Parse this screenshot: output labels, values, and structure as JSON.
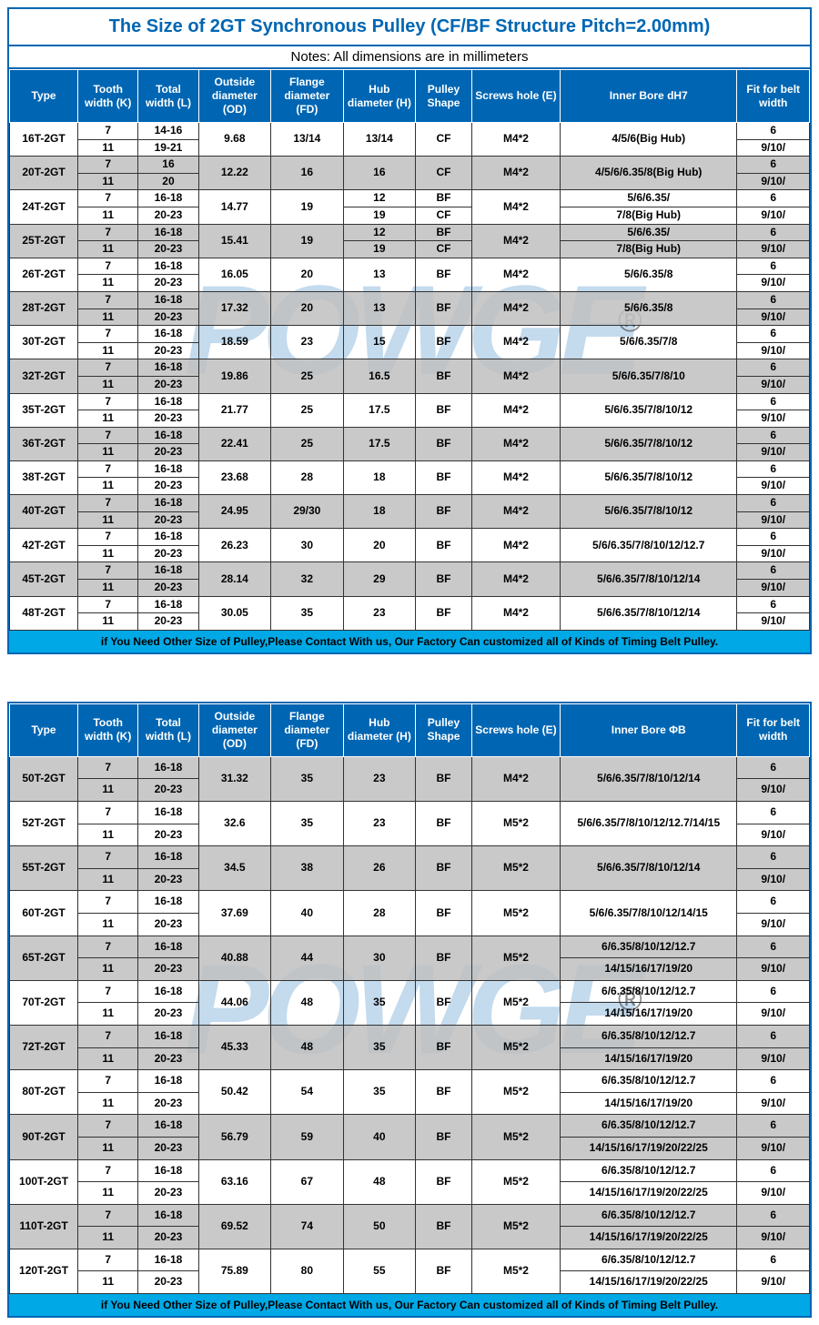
{
  "title": "The Size of 2GT Synchronous Pulley (CF/BF Structure Pitch=2.00mm)",
  "notes": "Notes: All dimensions are in millimeters",
  "footer": "if You Need Other Size of Pulley,Please Contact With us, Our Factory Can customized all of Kinds of Timing Belt Pulley.",
  "watermark": "POWGE",
  "colors": {
    "header_bg": "#0066b3",
    "header_text": "#ffffff",
    "footer_bg": "#00a8e6",
    "grey_row": "#bfbfbf",
    "border": "#333333",
    "title_color": "#0066b3"
  },
  "headers": {
    "type": "Type",
    "tooth": "Tooth width (K)",
    "total": "Total width (L)",
    "od": "Outside diameter (OD)",
    "fd": "Flange diameter (FD)",
    "hub": "Hub diameter (H)",
    "shape": "Pulley Shape",
    "screw": "Screws hole (E)",
    "bore1": "Inner Bore dH7",
    "bore2": "Inner Bore ΦB",
    "fit": "Fit for belt width"
  },
  "table1": [
    {
      "gs": "w",
      "type": "16T-2GT",
      "tooth": [
        "7",
        "11"
      ],
      "total": [
        "14-16",
        "19-21"
      ],
      "od": "9.68",
      "fd": "13/14",
      "hub": [
        "13/14"
      ],
      "shape": [
        "CF"
      ],
      "screw": "M4*2",
      "bore": [
        "4/5/6(Big Hub)"
      ],
      "fit": [
        "6",
        "9/10/"
      ]
    },
    {
      "gs": "g",
      "type": "20T-2GT",
      "tooth": [
        "7",
        "11"
      ],
      "total": [
        "16",
        "20"
      ],
      "od": "12.22",
      "fd": "16",
      "hub": [
        "16"
      ],
      "shape": [
        "CF"
      ],
      "screw": "M4*2",
      "bore": [
        "4/5/6/6.35/8(Big Hub)"
      ],
      "fit": [
        "6",
        "9/10/"
      ]
    },
    {
      "gs": "w",
      "type": "24T-2GT",
      "tooth": [
        "7",
        "11"
      ],
      "total": [
        "16-18",
        "20-23"
      ],
      "od": "14.77",
      "fd": "19",
      "hub": [
        "12",
        "19"
      ],
      "shape": [
        "BF",
        "CF"
      ],
      "screw": "M4*2",
      "bore": [
        "5/6/6.35/",
        "7/8(Big Hub)"
      ],
      "fit": [
        "6",
        "9/10/"
      ]
    },
    {
      "gs": "g",
      "type": "25T-2GT",
      "tooth": [
        "7",
        "11"
      ],
      "total": [
        "16-18",
        "20-23"
      ],
      "od": "15.41",
      "fd": "19",
      "hub": [
        "12",
        "19"
      ],
      "shape": [
        "BF",
        "CF"
      ],
      "screw": "M4*2",
      "bore": [
        "5/6/6.35/",
        "7/8(Big Hub)"
      ],
      "fit": [
        "6",
        "9/10/"
      ]
    },
    {
      "gs": "w",
      "type": "26T-2GT",
      "tooth": [
        "7",
        "11"
      ],
      "total": [
        "16-18",
        "20-23"
      ],
      "od": "16.05",
      "fd": "20",
      "hub": [
        "13"
      ],
      "shape": [
        "BF"
      ],
      "screw": "M4*2",
      "bore": [
        "5/6/6.35/8"
      ],
      "fit": [
        "6",
        "9/10/"
      ]
    },
    {
      "gs": "g",
      "type": "28T-2GT",
      "tooth": [
        "7",
        "11"
      ],
      "total": [
        "16-18",
        "20-23"
      ],
      "od": "17.32",
      "fd": "20",
      "hub": [
        "13"
      ],
      "shape": [
        "BF"
      ],
      "screw": "M4*2",
      "bore": [
        "5/6/6.35/8"
      ],
      "fit": [
        "6",
        "9/10/"
      ]
    },
    {
      "gs": "w",
      "type": "30T-2GT",
      "tooth": [
        "7",
        "11"
      ],
      "total": [
        "16-18",
        "20-23"
      ],
      "od": "18.59",
      "fd": "23",
      "hub": [
        "15"
      ],
      "shape": [
        "BF"
      ],
      "screw": "M4*2",
      "bore": [
        "5/6/6.35/7/8"
      ],
      "fit": [
        "6",
        "9/10/"
      ]
    },
    {
      "gs": "g",
      "type": "32T-2GT",
      "tooth": [
        "7",
        "11"
      ],
      "total": [
        "16-18",
        "20-23"
      ],
      "od": "19.86",
      "fd": "25",
      "hub": [
        "16.5"
      ],
      "shape": [
        "BF"
      ],
      "screw": "M4*2",
      "bore": [
        "5/6/6.35/7/8/10"
      ],
      "fit": [
        "6",
        "9/10/"
      ]
    },
    {
      "gs": "w",
      "type": "35T-2GT",
      "tooth": [
        "7",
        "11"
      ],
      "total": [
        "16-18",
        "20-23"
      ],
      "od": "21.77",
      "fd": "25",
      "hub": [
        "17.5"
      ],
      "shape": [
        "BF"
      ],
      "screw": "M4*2",
      "bore": [
        "5/6/6.35/7/8/10/12"
      ],
      "fit": [
        "6",
        "9/10/"
      ]
    },
    {
      "gs": "g",
      "type": "36T-2GT",
      "tooth": [
        "7",
        "11"
      ],
      "total": [
        "16-18",
        "20-23"
      ],
      "od": "22.41",
      "fd": "25",
      "hub": [
        "17.5"
      ],
      "shape": [
        "BF"
      ],
      "screw": "M4*2",
      "bore": [
        "5/6/6.35/7/8/10/12"
      ],
      "fit": [
        "6",
        "9/10/"
      ]
    },
    {
      "gs": "w",
      "type": "38T-2GT",
      "tooth": [
        "7",
        "11"
      ],
      "total": [
        "16-18",
        "20-23"
      ],
      "od": "23.68",
      "fd": "28",
      "hub": [
        "18"
      ],
      "shape": [
        "BF"
      ],
      "screw": "M4*2",
      "bore": [
        "5/6/6.35/7/8/10/12"
      ],
      "fit": [
        "6",
        "9/10/"
      ]
    },
    {
      "gs": "g",
      "type": "40T-2GT",
      "tooth": [
        "7",
        "11"
      ],
      "total": [
        "16-18",
        "20-23"
      ],
      "od": "24.95",
      "fd": "29/30",
      "hub": [
        "18"
      ],
      "shape": [
        "BF"
      ],
      "screw": "M4*2",
      "bore": [
        "5/6/6.35/7/8/10/12"
      ],
      "fit": [
        "6",
        "9/10/"
      ]
    },
    {
      "gs": "w",
      "type": "42T-2GT",
      "tooth": [
        "7",
        "11"
      ],
      "total": [
        "16-18",
        "20-23"
      ],
      "od": "26.23",
      "fd": "30",
      "hub": [
        "20"
      ],
      "shape": [
        "BF"
      ],
      "screw": "M4*2",
      "bore": [
        "5/6/6.35/7/8/10/12/12.7"
      ],
      "fit": [
        "6",
        "9/10/"
      ]
    },
    {
      "gs": "g",
      "type": "45T-2GT",
      "tooth": [
        "7",
        "11"
      ],
      "total": [
        "16-18",
        "20-23"
      ],
      "od": "28.14",
      "fd": "32",
      "hub": [
        "29"
      ],
      "shape": [
        "BF"
      ],
      "screw": "M4*2",
      "bore": [
        "5/6/6.35/7/8/10/12/14"
      ],
      "fit": [
        "6",
        "9/10/"
      ]
    },
    {
      "gs": "w",
      "type": "48T-2GT",
      "tooth": [
        "7",
        "11"
      ],
      "total": [
        "16-18",
        "20-23"
      ],
      "od": "30.05",
      "fd": "35",
      "hub": [
        "23"
      ],
      "shape": [
        "BF"
      ],
      "screw": "M4*2",
      "bore": [
        "5/6/6.35/7/8/10/12/14"
      ],
      "fit": [
        "6",
        "9/10/"
      ]
    }
  ],
  "table2": [
    {
      "gs": "g",
      "type": "50T-2GT",
      "tooth": [
        "7",
        "11"
      ],
      "total": [
        "16-18",
        "20-23"
      ],
      "od": "31.32",
      "fd": "35",
      "hub": [
        "23"
      ],
      "shape": [
        "BF"
      ],
      "screw": "M4*2",
      "bore": [
        "5/6/6.35/7/8/10/12/14"
      ],
      "fit": [
        "6",
        "9/10/"
      ]
    },
    {
      "gs": "w",
      "type": "52T-2GT",
      "tooth": [
        "7",
        "11"
      ],
      "total": [
        "16-18",
        "20-23"
      ],
      "od": "32.6",
      "fd": "35",
      "hub": [
        "23"
      ],
      "shape": [
        "BF"
      ],
      "screw": "M5*2",
      "bore": [
        "5/6/6.35/7/8/10/12/12.7/14/15"
      ],
      "fit": [
        "6",
        "9/10/"
      ]
    },
    {
      "gs": "g",
      "type": "55T-2GT",
      "tooth": [
        "7",
        "11"
      ],
      "total": [
        "16-18",
        "20-23"
      ],
      "od": "34.5",
      "fd": "38",
      "hub": [
        "26"
      ],
      "shape": [
        "BF"
      ],
      "screw": "M5*2",
      "bore": [
        "5/6/6.35/7/8/10/12/14"
      ],
      "fit": [
        "6",
        "9/10/"
      ]
    },
    {
      "gs": "w",
      "type": "60T-2GT",
      "tooth": [
        "7",
        "11"
      ],
      "total": [
        "16-18",
        "20-23"
      ],
      "od": "37.69",
      "fd": "40",
      "hub": [
        "28"
      ],
      "shape": [
        "BF"
      ],
      "screw": "M5*2",
      "bore": [
        "5/6/6.35/7/8/10/12/14/15"
      ],
      "fit": [
        "6",
        "9/10/"
      ]
    },
    {
      "gs": "g",
      "type": "65T-2GT",
      "tooth": [
        "7",
        "11"
      ],
      "total": [
        "16-18",
        "20-23"
      ],
      "od": "40.88",
      "fd": "44",
      "hub": [
        "30"
      ],
      "shape": [
        "BF"
      ],
      "screw": "M5*2",
      "bore": [
        "6/6.35/8/10/12/12.7",
        "14/15/16/17/19/20"
      ],
      "fit": [
        "6",
        "9/10/"
      ]
    },
    {
      "gs": "w",
      "type": "70T-2GT",
      "tooth": [
        "7",
        "11"
      ],
      "total": [
        "16-18",
        "20-23"
      ],
      "od": "44.06",
      "fd": "48",
      "hub": [
        "35"
      ],
      "shape": [
        "BF"
      ],
      "screw": "M5*2",
      "bore": [
        "6/6.35/8/10/12/12.7",
        "14/15/16/17/19/20"
      ],
      "fit": [
        "6",
        "9/10/"
      ]
    },
    {
      "gs": "g",
      "type": "72T-2GT",
      "tooth": [
        "7",
        "11"
      ],
      "total": [
        "16-18",
        "20-23"
      ],
      "od": "45.33",
      "fd": "48",
      "hub": [
        "35"
      ],
      "shape": [
        "BF"
      ],
      "screw": "M5*2",
      "bore": [
        "6/6.35/8/10/12/12.7",
        "14/15/16/17/19/20"
      ],
      "fit": [
        "6",
        "9/10/"
      ]
    },
    {
      "gs": "w",
      "type": "80T-2GT",
      "tooth": [
        "7",
        "11"
      ],
      "total": [
        "16-18",
        "20-23"
      ],
      "od": "50.42",
      "fd": "54",
      "hub": [
        "35"
      ],
      "shape": [
        "BF"
      ],
      "screw": "M5*2",
      "bore": [
        "6/6.35/8/10/12/12.7",
        "14/15/16/17/19/20"
      ],
      "fit": [
        "6",
        "9/10/"
      ]
    },
    {
      "gs": "g",
      "type": "90T-2GT",
      "tooth": [
        "7",
        "11"
      ],
      "total": [
        "16-18",
        "20-23"
      ],
      "od": "56.79",
      "fd": "59",
      "hub": [
        "40"
      ],
      "shape": [
        "BF"
      ],
      "screw": "M5*2",
      "bore": [
        "6/6.35/8/10/12/12.7",
        "14/15/16/17/19/20/22/25"
      ],
      "fit": [
        "6",
        "9/10/"
      ]
    },
    {
      "gs": "w",
      "type": "100T-2GT",
      "tooth": [
        "7",
        "11"
      ],
      "total": [
        "16-18",
        "20-23"
      ],
      "od": "63.16",
      "fd": "67",
      "hub": [
        "48"
      ],
      "shape": [
        "BF"
      ],
      "screw": "M5*2",
      "bore": [
        "6/6.35/8/10/12/12.7",
        "14/15/16/17/19/20/22/25"
      ],
      "fit": [
        "6",
        "9/10/"
      ]
    },
    {
      "gs": "g",
      "type": "110T-2GT",
      "tooth": [
        "7",
        "11"
      ],
      "total": [
        "16-18",
        "20-23"
      ],
      "od": "69.52",
      "fd": "74",
      "hub": [
        "50"
      ],
      "shape": [
        "BF"
      ],
      "screw": "M5*2",
      "bore": [
        "6/6.35/8/10/12/12.7",
        "14/15/16/17/19/20/22/25"
      ],
      "fit": [
        "6",
        "9/10/"
      ]
    },
    {
      "gs": "w",
      "type": "120T-2GT",
      "tooth": [
        "7",
        "11"
      ],
      "total": [
        "16-18",
        "20-23"
      ],
      "od": "75.89",
      "fd": "80",
      "hub": [
        "55"
      ],
      "shape": [
        "BF"
      ],
      "screw": "M5*2",
      "bore": [
        "6/6.35/8/10/12/12.7",
        "14/15/16/17/19/20/22/25"
      ],
      "fit": [
        "6",
        "9/10/"
      ]
    }
  ]
}
